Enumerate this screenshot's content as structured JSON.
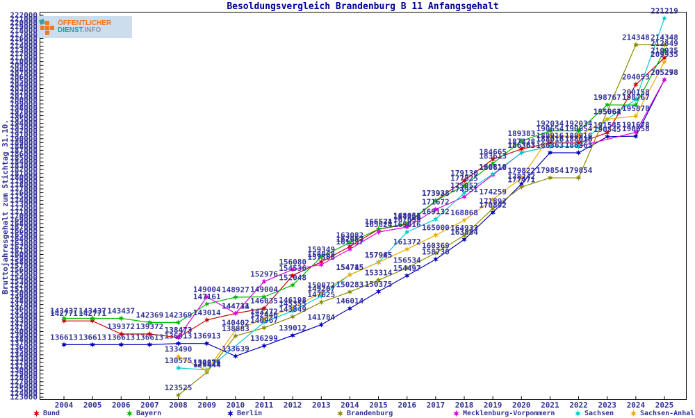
{
  "title": "Besoldungsvergleich Brandenburg B 11 Anfangsgehalt",
  "y_axis_label": "Bruttojahresgehalt zum Stichtag 31.10.",
  "logo": {
    "line1": "ÖFFENTLICHER",
    "line2_a": "DIENST",
    "line2_b": ".INFO"
  },
  "colors": {
    "label_text": "#333399",
    "title_text": "#000099",
    "axis": "#000000"
  },
  "chart_data": {
    "type": "line",
    "title": "Besoldungsvergleich Brandenburg B 11 Anfangsgehalt",
    "ylabel": "Bruttojahresgehalt zum Stichtag 31.10.",
    "xlabel": "",
    "x": [
      2004,
      2005,
      2006,
      2007,
      2008,
      2009,
      2010,
      2011,
      2012,
      2013,
      2014,
      2015,
      2016,
      2017,
      2018,
      2019,
      2020,
      2021,
      2022,
      2023,
      2024,
      2025
    ],
    "ylim": [
      123000,
      222000
    ],
    "ytick_step": 1000,
    "grid": false,
    "legend_position": "bottom",
    "point_labels": true,
    "series": [
      {
        "name": "Bund",
        "color": "#cc0000",
        "values": [
          142771,
          142771,
          139372,
          139372,
          138473,
          143014,
          144711,
          146035,
          154536,
          158068,
          162057,
          166524,
          167799,
          173928,
          179130,
          184665,
          187328,
          188916,
          188916,
          191545,
          204053,
          210935
        ]
      },
      {
        "name": "Bayern",
        "color": "#00bb00",
        "values": [
          143437,
          143437,
          143437,
          142369,
          142369,
          147161,
          148927,
          149004,
          152048,
          159349,
          163082,
          166571,
          168051,
          173938,
          177825,
          183613,
          189383,
          192034,
          192034,
          198767,
          198767,
          212849
        ]
      },
      {
        "name": "Berlin",
        "color": "#0000bb",
        "values": [
          136613,
          136613,
          136613,
          136613,
          136913,
          136913,
          133639,
          136299,
          139012,
          141784,
          146014,
          150375,
          154497,
          158730,
          163884,
          170892,
          178242,
          186363,
          186363,
          190545,
          190658,
          205278
        ]
      },
      {
        "name": "Brandenburg",
        "color": "#8b8b00",
        "values": [
          null,
          null,
          null,
          null,
          123525,
          129444,
          138883,
          140967,
          143849,
          147625,
          150283,
          153314,
          156534,
          160369,
          164933,
          171892,
          177471,
          179854,
          179854,
          null,
          214348,
          214348
        ]
      },
      {
        "name": "Mecklenburg-Vorpommern",
        "color": "#dd00dd",
        "values": [
          null,
          null,
          null,
          null,
          138473,
          149004,
          144734,
          152976,
          156080,
          157368,
          161357,
          165824,
          167099,
          171672,
          174951,
          180610,
          186363,
          188016,
          188016,
          null,
          191678,
          205298
        ]
      },
      {
        "name": "Sachsen",
        "color": "#00cccc",
        "values": [
          null,
          null,
          null,
          null,
          130575,
          130076,
          null,
          142446,
          145355,
          149207,
          154745,
          157965,
          165816,
          169132,
          175952,
          180810,
          186363,
          188018,
          188018,
          195064,
          200158,
          221219
        ]
      },
      {
        "name": "Sachsen-Anhalt",
        "color": "#eeaa00",
        "values": [
          null,
          null,
          null,
          null,
          133490,
          129872,
          140402,
          143272,
          146198,
          150072,
          154715,
          157945,
          161372,
          165000,
          168868,
          174259,
          179822,
          190654,
          190654,
          195061,
          195878,
          209935
        ]
      }
    ],
    "legend_x_positions": [
      46,
      180,
      325,
      483,
      650,
      825,
      905
    ]
  }
}
